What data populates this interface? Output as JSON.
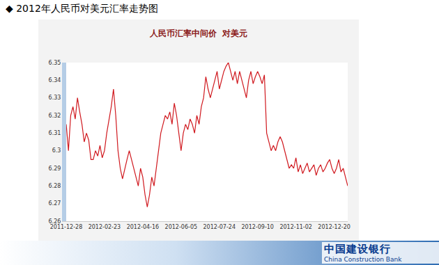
{
  "page": {
    "heading": "◆  2012年人民币对美元汇率走势图",
    "bank_name": "中国建设银行",
    "bank_name_en": "China Construction Bank"
  },
  "chart_data": {
    "type": "line",
    "title": "人民币汇率中间价  对美元",
    "color": "#d0191f",
    "grid": false,
    "categories": [
      "2011-12-28",
      null,
      null,
      null,
      null,
      null,
      null,
      null,
      null,
      null,
      null,
      null,
      null,
      null,
      null,
      null,
      null,
      "2012-02-23",
      null,
      null,
      null,
      null,
      null,
      null,
      null,
      null,
      null,
      null,
      null,
      null,
      null,
      null,
      null,
      null,
      "2012-04-16",
      null,
      null,
      null,
      null,
      null,
      null,
      null,
      null,
      null,
      null,
      null,
      null,
      null,
      null,
      null,
      null,
      "2012-06-05",
      null,
      null,
      null,
      null,
      null,
      null,
      null,
      null,
      null,
      null,
      null,
      null,
      null,
      null,
      null,
      null,
      "2012-07-24",
      null,
      null,
      null,
      null,
      null,
      null,
      null,
      null,
      null,
      null,
      null,
      null,
      null,
      null,
      null,
      null,
      "2012-09-10",
      null,
      null,
      null,
      null,
      null,
      null,
      null,
      null,
      null,
      null,
      null,
      null,
      null,
      null,
      null,
      null,
      "2012-11-02",
      null,
      null,
      null,
      null,
      null,
      null,
      null,
      null,
      null,
      null,
      null,
      null,
      null,
      null,
      null,
      null,
      "2012-12-20",
      null,
      null,
      null,
      null,
      null,
      null
    ],
    "values": [
      6.315,
      6.3,
      6.32,
      6.325,
      6.318,
      6.33,
      6.322,
      6.315,
      6.305,
      6.31,
      6.306,
      6.295,
      6.295,
      6.3,
      6.297,
      6.303,
      6.296,
      6.3,
      6.31,
      6.318,
      6.325,
      6.335,
      6.32,
      6.3,
      6.29,
      6.284,
      6.29,
      6.295,
      6.3,
      6.295,
      6.29,
      6.285,
      6.28,
      6.29,
      6.285,
      6.275,
      6.268,
      6.275,
      6.285,
      6.28,
      6.29,
      6.3,
      6.31,
      6.315,
      6.32,
      6.318,
      6.322,
      6.315,
      6.327,
      6.32,
      6.31,
      6.3,
      6.31,
      6.315,
      6.312,
      6.318,
      6.315,
      6.31,
      6.32,
      6.315,
      6.325,
      6.33,
      6.342,
      6.335,
      6.33,
      6.335,
      6.34,
      6.345,
      6.335,
      6.34,
      6.345,
      6.348,
      6.35,
      6.345,
      6.34,
      6.345,
      6.338,
      6.345,
      6.34,
      6.335,
      6.33,
      6.34,
      6.345,
      6.338,
      6.342,
      6.345,
      6.342,
      6.338,
      6.343,
      6.31,
      6.305,
      6.3,
      6.303,
      6.3,
      6.305,
      6.308,
      6.305,
      6.3,
      6.295,
      6.29,
      6.292,
      6.29,
      6.296,
      6.288,
      6.292,
      6.287,
      6.29,
      6.293,
      6.288,
      6.29,
      6.292,
      6.286,
      6.29,
      6.292,
      6.288,
      6.29,
      6.293,
      6.295,
      6.29,
      6.287,
      6.29,
      6.295,
      6.288,
      6.29,
      6.285,
      6.28
    ],
    "ylim": [
      6.26,
      6.35
    ],
    "yticks": [
      6.26,
      6.27,
      6.28,
      6.29,
      6.3,
      6.31,
      6.32,
      6.33,
      6.34,
      6.35
    ]
  }
}
